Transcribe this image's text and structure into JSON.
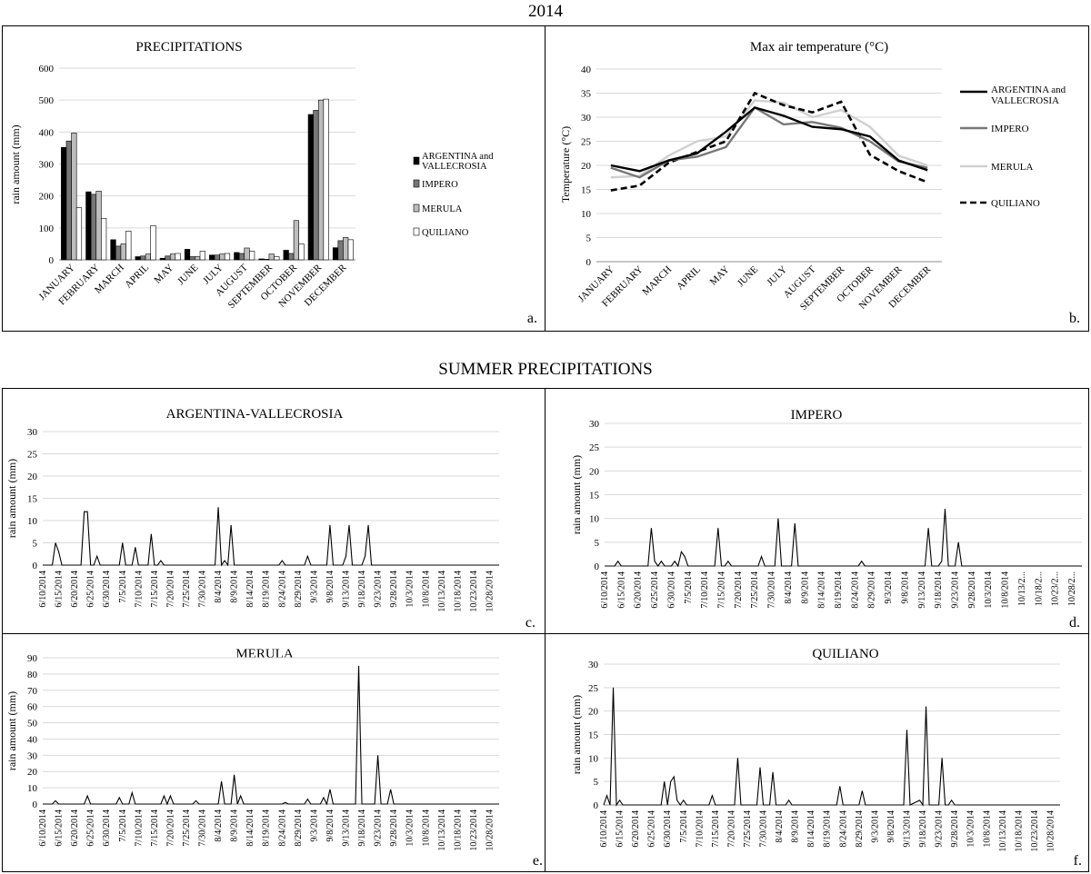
{
  "header": {
    "title": "2014",
    "summer_title": "SUMMER PRECIPITATIONS"
  },
  "chart_data": [
    {
      "id": "a",
      "type": "bar",
      "title": "PRECIPITATIONS",
      "ylabel": "rain amount (mm)",
      "xlabel": "",
      "panel_label": "a.",
      "ylim": [
        0,
        600
      ],
      "yticks": [
        0,
        100,
        200,
        300,
        400,
        500,
        600
      ],
      "grid": true,
      "legend": "right",
      "categories": [
        "JANUARY",
        "FEBRUARY",
        "MARCH",
        "APRIL",
        "MAY",
        "JUNE",
        "JULY",
        "AUGUST",
        "SEPTEMBER",
        "OCTOBER",
        "NOVEMBER",
        "DECEMBER"
      ],
      "series": [
        {
          "name": "ARGENTINA and VALLECROSIA",
          "color": "#000000",
          "values": [
            352,
            213,
            63,
            10,
            5,
            33,
            15,
            23,
            3,
            30,
            455,
            38
          ]
        },
        {
          "name": "IMPERO",
          "color": "#777777",
          "values": [
            372,
            205,
            43,
            12,
            12,
            10,
            15,
            20,
            2,
            20,
            468,
            60
          ]
        },
        {
          "name": "MERULA",
          "color": "#bdbdbd",
          "values": [
            397,
            215,
            50,
            18,
            18,
            10,
            18,
            37,
            18,
            123,
            500,
            70
          ]
        },
        {
          "name": "QUILIANO",
          "color": "#ffffff",
          "values": [
            163,
            130,
            90,
            107,
            20,
            27,
            20,
            27,
            10,
            50,
            503,
            63
          ]
        }
      ]
    },
    {
      "id": "b",
      "type": "line",
      "title": "Max air temperature (°C)",
      "ylabel": "Temperature (°C)",
      "xlabel": "",
      "panel_label": "b.",
      "ylim": [
        0,
        40
      ],
      "yticks": [
        0,
        5,
        10,
        15,
        20,
        25,
        30,
        35,
        40
      ],
      "grid": true,
      "legend": "right",
      "categories": [
        "JANUARY",
        "FEBRUARY",
        "MARCH",
        "APRIL",
        "MAY",
        "JUNE",
        "JULY",
        "AUGUST",
        "SEPTEMBER",
        "OCTOBER",
        "NOVEMBER",
        "DECEMBER"
      ],
      "series": [
        {
          "name": "ARGENTINA and VALLECROSIA",
          "color": "#000000",
          "style": "solid",
          "values": [
            20,
            18.8,
            21,
            22.5,
            27,
            32,
            30.3,
            28,
            27.5,
            26,
            21,
            19
          ]
        },
        {
          "name": "IMPERO",
          "color": "#777777",
          "style": "solid",
          "values": [
            19.5,
            17.5,
            21,
            21.8,
            23.8,
            32,
            28.5,
            29,
            27.8,
            25,
            20.8,
            19.5
          ]
        },
        {
          "name": "MERULA",
          "color": "#d0d0d0",
          "style": "solid",
          "values": [
            17.5,
            17.8,
            22,
            25,
            26,
            33.5,
            33,
            30,
            31.5,
            28,
            22,
            20
          ]
        },
        {
          "name": "QUILIANO",
          "color": "#000000",
          "style": "dashed",
          "values": [
            14.8,
            15.8,
            20.5,
            22.8,
            25,
            35,
            32.5,
            31,
            33.2,
            22.2,
            18.8,
            16.5
          ]
        }
      ]
    },
    {
      "id": "c",
      "type": "line",
      "title": "ARGENTINA-VALLECROSIA",
      "ylabel": "rain amount (mm)",
      "xlabel": "",
      "panel_label": "c.",
      "ylim": [
        0,
        30
      ],
      "yticks": [
        0,
        5,
        10,
        15,
        20,
        25,
        30
      ],
      "grid": true,
      "tick_labels": [
        "6/10/2014",
        "6/15/2014",
        "6/20/2014",
        "6/25/2014",
        "6/30/2014",
        "7/5/2014",
        "7/10/2014",
        "7/15/2014",
        "7/20/2014",
        "7/25/2014",
        "7/30/2014",
        "8/4/2014",
        "8/9/2014",
        "8/14/2014",
        "8/19/2014",
        "8/24/2014",
        "8/29/2014",
        "9/3/2014",
        "9/8/2014",
        "9/13/2014",
        "9/18/2014",
        "9/23/2014",
        "9/28/2014",
        "10/3/2014",
        "10/8/2014",
        "10/13/2014",
        "10/18/2014",
        "10/23/2014",
        "10/28/2014"
      ],
      "x_start": "6/10/2014",
      "points": [
        [
          "6/13/2014",
          0
        ],
        [
          "6/14/2014",
          5
        ],
        [
          "6/15/2014",
          3
        ],
        [
          "6/16/2014",
          0
        ],
        [
          "6/22/2014",
          0
        ],
        [
          "6/23/2014",
          12
        ],
        [
          "6/24/2014",
          12
        ],
        [
          "6/25/2014",
          0
        ],
        [
          "6/26/2014",
          0
        ],
        [
          "6/27/2014",
          2
        ],
        [
          "6/28/2014",
          0
        ],
        [
          "7/4/2014",
          0
        ],
        [
          "7/5/2014",
          5
        ],
        [
          "7/6/2014",
          0
        ],
        [
          "7/8/2014",
          0
        ],
        [
          "7/9/2014",
          4
        ],
        [
          "7/10/2014",
          0
        ],
        [
          "7/13/2014",
          0
        ],
        [
          "7/14/2014",
          7
        ],
        [
          "7/15/2014",
          0
        ],
        [
          "7/16/2014",
          0
        ],
        [
          "7/17/2014",
          1
        ],
        [
          "7/18/2014",
          0
        ],
        [
          "8/3/2014",
          0
        ],
        [
          "8/4/2014",
          13
        ],
        [
          "8/5/2014",
          0
        ],
        [
          "8/6/2014",
          1
        ],
        [
          "8/7/2014",
          0
        ],
        [
          "8/8/2014",
          9
        ],
        [
          "8/9/2014",
          0
        ],
        [
          "8/23/2014",
          0
        ],
        [
          "8/24/2014",
          1
        ],
        [
          "8/25/2014",
          0
        ],
        [
          "8/31/2014",
          0
        ],
        [
          "9/1/2014",
          2
        ],
        [
          "9/2/2014",
          0
        ],
        [
          "9/7/2014",
          0
        ],
        [
          "9/8/2014",
          9
        ],
        [
          "9/9/2014",
          0
        ],
        [
          "9/12/2014",
          0
        ],
        [
          "9/13/2014",
          2
        ],
        [
          "9/14/2014",
          9
        ],
        [
          "9/15/2014",
          0
        ],
        [
          "9/18/2014",
          0
        ],
        [
          "9/19/2014",
          2
        ],
        [
          "9/20/2014",
          9
        ],
        [
          "9/21/2014",
          0
        ]
      ],
      "x_end": "10/31/2014"
    },
    {
      "id": "d",
      "type": "line",
      "title": "IMPERO",
      "ylabel": "rain amount (mm)",
      "xlabel": "",
      "panel_label": "d.",
      "ylim": [
        0,
        30
      ],
      "yticks": [
        0,
        5,
        10,
        15,
        20,
        25,
        30
      ],
      "grid": true,
      "tick_labels": [
        "6/10/2014",
        "6/15/2014",
        "6/20/2014",
        "6/25/2014",
        "6/30/2014",
        "7/5/2014",
        "7/10/2014",
        "7/15/2014",
        "7/20/2014",
        "7/25/2014",
        "7/30/2014",
        "8/4/2014",
        "8/9/2014",
        "8/14/2014",
        "8/19/2014",
        "8/24/2014",
        "8/29/2014",
        "9/3/2014",
        "9/8/2014",
        "9/13/2014",
        "9/18/2014",
        "9/23/2014",
        "9/28/2014",
        "10/3/2014",
        "10/8/2014",
        "10/13/2...",
        "10/18/2...",
        "10/23/2...",
        "10/28/2..."
      ],
      "x_start": "6/10/2014",
      "points": [
        [
          "6/13/2014",
          0
        ],
        [
          "6/14/2014",
          1
        ],
        [
          "6/15/2014",
          0
        ],
        [
          "6/23/2014",
          0
        ],
        [
          "6/24/2014",
          8
        ],
        [
          "6/25/2014",
          1
        ],
        [
          "6/26/2014",
          0
        ],
        [
          "6/27/2014",
          1
        ],
        [
          "6/28/2014",
          0
        ],
        [
          "6/30/2014",
          0
        ],
        [
          "7/1/2014",
          1
        ],
        [
          "7/2/2014",
          0
        ],
        [
          "7/3/2014",
          3
        ],
        [
          "7/4/2014",
          2
        ],
        [
          "7/5/2014",
          0
        ],
        [
          "7/13/2014",
          0
        ],
        [
          "7/14/2014",
          8
        ],
        [
          "7/15/2014",
          0
        ],
        [
          "7/16/2014",
          0
        ],
        [
          "7/17/2014",
          1
        ],
        [
          "7/18/2014",
          0
        ],
        [
          "7/26/2014",
          0
        ],
        [
          "7/27/2014",
          2
        ],
        [
          "7/28/2014",
          0
        ],
        [
          "7/31/2014",
          0
        ],
        [
          "8/1/2014",
          10
        ],
        [
          "8/2/2014",
          0
        ],
        [
          "8/5/2014",
          0
        ],
        [
          "8/6/2014",
          9
        ],
        [
          "8/7/2014",
          0
        ],
        [
          "8/25/2014",
          0
        ],
        [
          "8/26/2014",
          1
        ],
        [
          "8/27/2014",
          0
        ],
        [
          "9/14/2014",
          0
        ],
        [
          "9/15/2014",
          8
        ],
        [
          "9/16/2014",
          0
        ],
        [
          "9/18/2014",
          0
        ],
        [
          "9/19/2014",
          1
        ],
        [
          "9/20/2014",
          12
        ],
        [
          "9/21/2014",
          0
        ],
        [
          "9/23/2014",
          0
        ],
        [
          "9/24/2014",
          5
        ],
        [
          "9/25/2014",
          0
        ]
      ],
      "x_end": "10/31/2014"
    },
    {
      "id": "e",
      "type": "line",
      "title": "MERULA",
      "ylabel": "rain amount (mm)",
      "xlabel": "",
      "panel_label": "e.",
      "ylim": [
        0,
        90
      ],
      "yticks": [
        0,
        10,
        20,
        30,
        40,
        50,
        60,
        70,
        80,
        90
      ],
      "grid": true,
      "tick_labels": [
        "6/10/2014",
        "6/15/2014",
        "6/20/2014",
        "6/25/2014",
        "6/30/2014",
        "7/5/2014",
        "7/10/2014",
        "7/15/2014",
        "7/20/2014",
        "7/25/2014",
        "7/30/2014",
        "8/4/2014",
        "8/9/2014",
        "8/14/2014",
        "8/19/2014",
        "8/24/2014",
        "8/29/2014",
        "9/3/2014",
        "9/8/2014",
        "9/13/2014",
        "9/18/2014",
        "9/23/2014",
        "9/28/2014",
        "10/3/2014",
        "10/8/2014",
        "10/13/2014",
        "10/18/2014",
        "10/23/2014",
        "10/28/2014"
      ],
      "x_start": "6/10/2014",
      "points": [
        [
          "6/13/2014",
          0
        ],
        [
          "6/14/2014",
          2
        ],
        [
          "6/15/2014",
          0
        ],
        [
          "6/23/2014",
          0
        ],
        [
          "6/24/2014",
          5
        ],
        [
          "6/25/2014",
          0
        ],
        [
          "7/3/2014",
          0
        ],
        [
          "7/4/2014",
          4
        ],
        [
          "7/5/2014",
          0
        ],
        [
          "7/7/2014",
          0
        ],
        [
          "7/8/2014",
          7
        ],
        [
          "7/9/2014",
          0
        ],
        [
          "7/17/2014",
          0
        ],
        [
          "7/18/2014",
          5
        ],
        [
          "7/19/2014",
          0
        ],
        [
          "7/20/2014",
          5
        ],
        [
          "7/21/2014",
          0
        ],
        [
          "7/27/2014",
          0
        ],
        [
          "7/28/2014",
          2
        ],
        [
          "7/29/2014",
          0
        ],
        [
          "8/4/2014",
          0
        ],
        [
          "8/5/2014",
          14
        ],
        [
          "8/6/2014",
          0
        ],
        [
          "8/8/2014",
          0
        ],
        [
          "8/9/2014",
          18
        ],
        [
          "8/10/2014",
          0
        ],
        [
          "8/11/2014",
          5
        ],
        [
          "8/12/2014",
          0
        ],
        [
          "8/24/2014",
          0
        ],
        [
          "8/25/2014",
          1
        ],
        [
          "8/26/2014",
          0
        ],
        [
          "8/31/2014",
          0
        ],
        [
          "9/1/2014",
          3
        ],
        [
          "9/2/2014",
          0
        ],
        [
          "9/5/2014",
          0
        ],
        [
          "9/6/2014",
          4
        ],
        [
          "9/7/2014",
          0
        ],
        [
          "9/8/2014",
          9
        ],
        [
          "9/9/2014",
          0
        ],
        [
          "9/16/2014",
          0
        ],
        [
          "9/17/2014",
          85
        ],
        [
          "9/18/2014",
          0
        ],
        [
          "9/22/2014",
          0
        ],
        [
          "9/23/2014",
          30
        ],
        [
          "9/24/2014",
          0
        ],
        [
          "9/26/2014",
          0
        ],
        [
          "9/27/2014",
          9
        ],
        [
          "9/28/2014",
          0
        ]
      ],
      "x_end": "10/31/2014"
    },
    {
      "id": "f",
      "type": "line",
      "title": "QUILIANO",
      "ylabel": "rain amount (mm)",
      "xlabel": "",
      "panel_label": "f.",
      "ylim": [
        0,
        30
      ],
      "yticks": [
        0,
        5,
        10,
        15,
        20,
        25,
        30
      ],
      "grid": true,
      "tick_labels": [
        "6/10/2014",
        "6/15/2014",
        "6/20/2014",
        "6/25/2014",
        "6/30/2014",
        "7/5/2014",
        "7/10/2014",
        "7/15/2014",
        "7/20/2014",
        "7/25/2014",
        "7/30/2014",
        "8/4/2014",
        "8/9/2014",
        "8/14/2014",
        "8/19/2014",
        "8/24/2014",
        "8/29/2014",
        "9/3/2014",
        "9/8/2014",
        "9/13/2014",
        "9/18/2014",
        "9/23/2014",
        "9/28/2014",
        "10/3/2014",
        "10/8/2014",
        "10/13/2014",
        "10/18/2014",
        "10/23/2014",
        "10/28/2014"
      ],
      "x_start": "6/10/2014",
      "points": [
        [
          "6/10/2014",
          0
        ],
        [
          "6/11/2014",
          2
        ],
        [
          "6/12/2014",
          0
        ],
        [
          "6/13/2014",
          25
        ],
        [
          "6/14/2014",
          0
        ],
        [
          "6/15/2014",
          1
        ],
        [
          "6/16/2014",
          0
        ],
        [
          "6/28/2014",
          0
        ],
        [
          "6/29/2014",
          5
        ],
        [
          "6/30/2014",
          0
        ],
        [
          "7/1/2014",
          5
        ],
        [
          "7/2/2014",
          6
        ],
        [
          "7/3/2014",
          1
        ],
        [
          "7/4/2014",
          0
        ],
        [
          "7/5/2014",
          1
        ],
        [
          "7/6/2014",
          0
        ],
        [
          "7/13/2014",
          0
        ],
        [
          "7/14/2014",
          2
        ],
        [
          "7/15/2014",
          0
        ],
        [
          "7/21/2014",
          0
        ],
        [
          "7/22/2014",
          10
        ],
        [
          "7/23/2014",
          0
        ],
        [
          "7/28/2014",
          0
        ],
        [
          "7/29/2014",
          8
        ],
        [
          "7/30/2014",
          0
        ],
        [
          "8/1/2014",
          0
        ],
        [
          "8/2/2014",
          7
        ],
        [
          "8/3/2014",
          0
        ],
        [
          "8/6/2014",
          0
        ],
        [
          "8/7/2014",
          1
        ],
        [
          "8/8/2014",
          0
        ],
        [
          "8/22/2014",
          0
        ],
        [
          "8/23/2014",
          4
        ],
        [
          "8/24/2014",
          0
        ],
        [
          "8/29/2014",
          0
        ],
        [
          "8/30/2014",
          3
        ],
        [
          "8/31/2014",
          0
        ],
        [
          "9/12/2014",
          0
        ],
        [
          "9/13/2014",
          16
        ],
        [
          "9/14/2014",
          0
        ],
        [
          "9/17/2014",
          1
        ],
        [
          "9/18/2014",
          0
        ],
        [
          "9/19/2014",
          21
        ],
        [
          "9/20/2014",
          0
        ],
        [
          "9/23/2014",
          0
        ],
        [
          "9/24/2014",
          10
        ],
        [
          "9/25/2014",
          0
        ],
        [
          "9/26/2014",
          0
        ],
        [
          "9/27/2014",
          1
        ],
        [
          "9/28/2014",
          0
        ]
      ],
      "x_end": "10/31/2014"
    }
  ]
}
